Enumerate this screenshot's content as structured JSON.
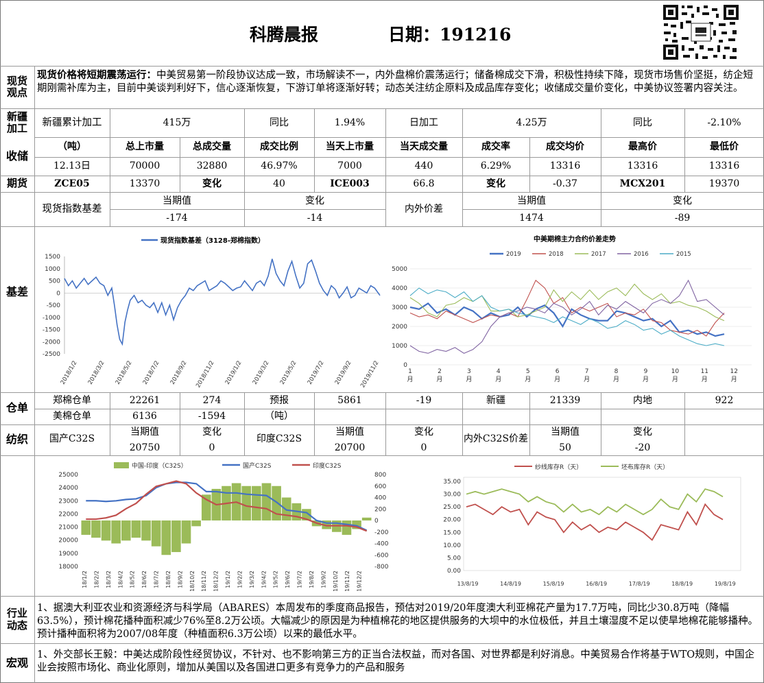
{
  "header": {
    "title": "科腾晨报",
    "date_label": "日期：191216"
  },
  "view": {
    "label": "现货观点",
    "bold": "现货价格将短期震荡运行：",
    "text": "中美贸易第一阶段协议达成一致，市场解读不一，内外盘棉价震荡运行；储备棉成交下滑，积极性持续下降，现货市场售价坚挺，纺企短期刚需补库为主，目前中美谈判利好下，信心逐渐恢复，下游订单将逐渐好转；动态关注纺企原料及成品库存变化；收储成交量价变化，中美协议签署内容关注。"
  },
  "xinjiang": {
    "label": "新疆加工",
    "c1": "新疆累计加工",
    "c2": "415万",
    "c3": "同比",
    "c4": "1.94%",
    "c5": "日加工",
    "c6": "4.25万",
    "c7": "同比",
    "c8": "-2.10%"
  },
  "reserve": {
    "label": "收储",
    "headers": [
      "（吨）",
      "总上市量",
      "总成交量",
      "成交比例",
      "当天上市量",
      "当天成交量",
      "成交率",
      "成交均价",
      "最高价",
      "最低价"
    ],
    "row": [
      "12.13日",
      "70000",
      "32880",
      "46.97%",
      "7000",
      "440",
      "6.29%",
      "13316",
      "13316",
      "13316"
    ]
  },
  "futures": {
    "label": "期货",
    "cells": [
      "ZCE05",
      "13370",
      "变化",
      "40",
      "ICE003",
      "66.8",
      "变化",
      "-0.37",
      "MCX201",
      "19370"
    ]
  },
  "basis_row": {
    "c1": "现货指数基差",
    "h1": "当期值",
    "h2": "变化",
    "c2": "内外价差",
    "h3": "当期值",
    "h4": "变化",
    "v1": "-174",
    "v2": "-14",
    "v3": "1474",
    "v4": "-89"
  },
  "basis": {
    "label": "基差"
  },
  "warehouse": {
    "label": "仓单",
    "r1": [
      "郑棉仓单",
      "22261",
      "274",
      "预报",
      "5861",
      "-19",
      "新疆",
      "21339",
      "内地",
      "922"
    ],
    "r2": [
      "美棉仓单",
      "6136",
      "-1594",
      "（吨）"
    ]
  },
  "spin": {
    "label": "纺织",
    "c1": "国产C32S",
    "c2": "当期值",
    "c3": "变化",
    "c4": "印度C32S",
    "c5": "当期值",
    "c6": "变化",
    "c7": "内外C32S价差",
    "c8": "当期值",
    "c9": "变化",
    "v1": "20750",
    "v2": "0",
    "v3": "20700",
    "v4": "0",
    "v5": "50",
    "v6": "-20"
  },
  "industry": {
    "label": "行业动态",
    "text": "1、据澳大利亚农业和资源经济与科学局（ABARES）本周发布的季度商品报告，预估对2019/20年度澳大利亚棉花产量为17.7万吨，同比少30.8万吨（降幅63.5%），预计棉花播种面积减少76%至8.2万公顷。大幅减少的原因是为种植棉花的地区提供服务的大坝中的水位极低，并且土壤湿度不足以使旱地棉花能够播种。预计播种面积将为2007/08年度（种植面积6.3万公顷）以来的最低水平。"
  },
  "macro": {
    "label": "宏观",
    "text": "1、外交部长王毅：中美达成阶段性经贸协议，不针对、也不影响第三方的正当合法权益，而对各国、对世界都是利好消息。中美贸易合作将基于WTO规则，中国企业会按照市场化、商业化原则，增加从美国以及各国进口更多有竞争力的产品和服务"
  },
  "colors": {
    "blue": "#4472c4",
    "red": "#c0504d",
    "green": "#9bbb59",
    "purple": "#8064a2",
    "cyan": "#4bacc6",
    "bar": "#9bbb59"
  },
  "chart_data": [
    {
      "type": "line",
      "title": "",
      "series": [
        {
          "name": "现货指数基差（3128-郑棉指数）"
        }
      ],
      "ylim": [
        -2500,
        1500
      ],
      "yticks": [
        "1500",
        "1000",
        "500",
        "0",
        "-500",
        "-1000",
        "-1500",
        "-2000",
        "-2500"
      ],
      "xticks": [
        "2018/1/2",
        "2018/3/2",
        "2018/5/2",
        "2018/7/2",
        "2018/9/2",
        "2018/11/2",
        "2019/1/2",
        "2019/3/2",
        "2019/5/2",
        "2019/7/2",
        "2019/9/2",
        "2019/11/2"
      ],
      "x": [
        0,
        3,
        6,
        9,
        12,
        15,
        18,
        21,
        24,
        27,
        30,
        33,
        36,
        38,
        40,
        42,
        44,
        46,
        48,
        50,
        53,
        56,
        59,
        62,
        65,
        68,
        71,
        74,
        77,
        80,
        83,
        86,
        89,
        92,
        95,
        98,
        101,
        104,
        107,
        110,
        113,
        116,
        119,
        122,
        125,
        128,
        131,
        134,
        137,
        140,
        143,
        146,
        149,
        152,
        155,
        158,
        161,
        164,
        167,
        170,
        173,
        176,
        179,
        182,
        185,
        188,
        191,
        194,
        197,
        200,
        203,
        206,
        209,
        212,
        215,
        218,
        221,
        224,
        227,
        230,
        233,
        236,
        240
      ],
      "values": [
        600,
        300,
        500,
        200,
        400,
        600,
        350,
        500,
        650,
        400,
        300,
        -100,
        200,
        -500,
        -1300,
        -1900,
        -2100,
        -1200,
        -700,
        -300,
        -100,
        -400,
        -300,
        -500,
        -600,
        -400,
        -800,
        -400,
        -900,
        -500,
        -1100,
        -600,
        -300,
        -100,
        200,
        100,
        300,
        400,
        500,
        100,
        200,
        300,
        500,
        400,
        250,
        100,
        200,
        250,
        500,
        300,
        100,
        400,
        500,
        300,
        700,
        1400,
        800,
        500,
        300,
        900,
        1300,
        700,
        200,
        400,
        1200,
        1350,
        900,
        400,
        100,
        -100,
        300,
        150,
        -200,
        0,
        250,
        -200,
        -100,
        200,
        100,
        0,
        300,
        200,
        -100
      ]
    },
    {
      "type": "line",
      "title": "中美期棉主力合约价差走势",
      "xticks": [
        "1月",
        "2月",
        "3月",
        "4月",
        "5月",
        "6月",
        "7月",
        "8月",
        "9月",
        "10月",
        "11月",
        "12月"
      ],
      "yticks": [
        "5000",
        "4000",
        "3000",
        "2000",
        "1000",
        "0"
      ],
      "ylim": [
        0,
        5000
      ],
      "series": [
        {
          "name": "2019",
          "values": [
            3000,
            2900,
            3200,
            2700,
            2900,
            2600,
            3000,
            2800,
            2400,
            2700,
            2500,
            2600,
            3000,
            2500,
            2900,
            3100,
            2700,
            2000,
            2900,
            2600,
            2400,
            2300,
            2300,
            2800,
            2700,
            2500,
            2300,
            2400,
            2000,
            2300,
            1700,
            1800,
            1600,
            1700,
            1500,
            1600
          ]
        },
        {
          "name": "2018",
          "values": [
            2700,
            2500,
            2600,
            2400,
            2800,
            2600,
            2400,
            2200,
            2400,
            2600,
            2500,
            2700,
            2500,
            3400,
            4400,
            4000,
            3200,
            3500,
            2700,
            3000,
            2800,
            3000,
            3200,
            2500,
            2700,
            2600,
            2900,
            2300,
            2200,
            1800,
            1700,
            1600,
            1800,
            1500,
            2200,
            2700
          ]
        },
        {
          "name": "2017",
          "values": [
            3500,
            3200,
            2700,
            2500,
            3100,
            3200,
            3500,
            3300,
            3600,
            2800,
            2800,
            2900,
            2500,
            2600,
            2800,
            3000,
            3900,
            3300,
            3800,
            3400,
            3900,
            3400,
            3800,
            4000,
            3600,
            4200,
            3700,
            3400,
            3700,
            3200,
            3300,
            3100,
            3000,
            2800,
            2500,
            2300
          ]
        },
        {
          "name": "2016",
          "values": [
            1000,
            700,
            600,
            800,
            700,
            900,
            600,
            800,
            1200,
            2000,
            2500,
            2700,
            2800,
            3000,
            2900,
            2700,
            3200,
            3000,
            2600,
            2900,
            3300,
            2600,
            3100,
            2900,
            3300,
            3000,
            2700,
            3200,
            3400,
            3200,
            3600,
            4400,
            3300,
            3400,
            3000,
            2600
          ]
        },
        {
          "name": "2015",
          "values": [
            3600,
            4000,
            3700,
            3900,
            3800,
            3500,
            3800,
            3300,
            3600,
            3000,
            2800,
            2900,
            2700,
            2600,
            2500,
            2400,
            2200,
            2500,
            2300,
            2100,
            2400,
            2200,
            1900,
            2000,
            2300,
            2100,
            1800,
            1900,
            1600,
            1800,
            1500,
            1300,
            1100,
            1000,
            1100,
            1000
          ]
        }
      ]
    },
    {
      "type": "bar+line",
      "title": "",
      "series": [
        {
          "name": "中国-印度（C32S）"
        },
        {
          "name": "国产C32S"
        },
        {
          "name": "印度C32S"
        }
      ],
      "ylim": [
        18000,
        25000
      ],
      "yticks": [
        "25000",
        "24000",
        "23000",
        "22000",
        "21000",
        "20000",
        "19000",
        "18000"
      ],
      "y2lim": [
        -800,
        800
      ],
      "y2ticks": [
        "800",
        "600",
        "400",
        "200",
        "0",
        "-200",
        "-400",
        "-600",
        "-800"
      ],
      "xticks": [
        "18/1/2",
        "18/2/2",
        "18/3/2",
        "18/4/2",
        "18/5/2",
        "18/6/2",
        "18/7/2",
        "18/8/2",
        "18/9/2",
        "18/10/2",
        "18/11/2",
        "18/12/2",
        "19/1/2",
        "19/2/2",
        "19/3/2",
        "19/4/2",
        "19/5/2",
        "19/6/2",
        "19/7/2",
        "19/8/2",
        "19/9/2",
        "19/10/2",
        "19/11/2",
        "19/12/2"
      ],
      "domestic": [
        23000,
        23000,
        22950,
        23000,
        23100,
        23150,
        23400,
        24000,
        24300,
        24400,
        24400,
        24300,
        23700,
        23700,
        23600,
        23600,
        23500,
        23450,
        23400,
        22900,
        22300,
        22200,
        22100,
        21500,
        21300,
        21300,
        21200,
        21100,
        20750
      ],
      "india": [
        21600,
        21600,
        21700,
        21900,
        22400,
        22800,
        23500,
        24100,
        24300,
        24500,
        24300,
        23600,
        23100,
        22700,
        22800,
        22900,
        22600,
        22500,
        22400,
        22000,
        21900,
        21800,
        21600,
        21300,
        21100,
        21100,
        21100,
        21000,
        20700
      ],
      "diff": [
        -250,
        -300,
        -350,
        -400,
        -350,
        -300,
        -350,
        -450,
        -600,
        -550,
        -400,
        -100,
        450,
        550,
        600,
        650,
        600,
        600,
        650,
        600,
        400,
        300,
        200,
        -100,
        -150,
        -200,
        -250,
        -150,
        50
      ]
    },
    {
      "type": "line",
      "title": "",
      "series": [
        {
          "name": "纱线库存R（天）"
        },
        {
          "name": "坯布库存R（天）"
        }
      ],
      "ylim": [
        0,
        35
      ],
      "yticks": [
        "35.00",
        "30.00",
        "25.00",
        "20.00",
        "15.00",
        "10.00",
        "5.00",
        "0.00"
      ],
      "xticks": [
        "13/8/19",
        "14/8/19",
        "15/8/19",
        "16/8/19",
        "17/8/19",
        "18/8/19",
        "19/8/19"
      ],
      "yarn": [
        25,
        26,
        24,
        22,
        25,
        23,
        24,
        18,
        23,
        21,
        20,
        15,
        19,
        16,
        18,
        15,
        17,
        16,
        19,
        17,
        15,
        12,
        18,
        17,
        16,
        23,
        18,
        26,
        22,
        20
      ],
      "cloth": [
        30,
        31,
        30,
        31,
        32,
        31,
        30,
        27,
        29,
        27,
        26,
        23,
        26,
        23,
        24,
        22,
        25,
        23,
        26,
        24,
        22,
        24,
        28,
        25,
        24,
        30,
        27,
        32,
        31,
        29
      ]
    }
  ]
}
